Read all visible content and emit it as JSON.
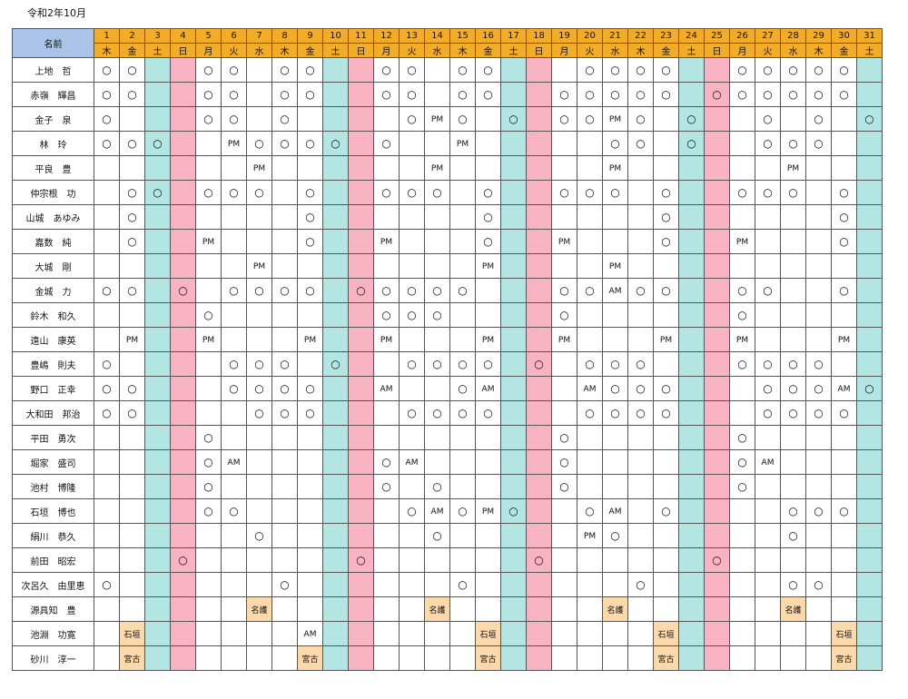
{
  "title": "令和2年10月",
  "header": {
    "name_label": "名前"
  },
  "days": [
    "1",
    "2",
    "3",
    "4",
    "5",
    "6",
    "7",
    "8",
    "9",
    "10",
    "11",
    "12",
    "13",
    "14",
    "15",
    "16",
    "17",
    "18",
    "19",
    "20",
    "21",
    "22",
    "23",
    "24",
    "25",
    "26",
    "27",
    "28",
    "29",
    "30",
    "31"
  ],
  "weekdays": [
    "木",
    "金",
    "土",
    "日",
    "月",
    "火",
    "水",
    "木",
    "金",
    "土",
    "日",
    "月",
    "火",
    "水",
    "木",
    "金",
    "土",
    "日",
    "月",
    "火",
    "水",
    "木",
    "金",
    "土",
    "日",
    "月",
    "火",
    "水",
    "木",
    "金",
    "土"
  ],
  "colors": {
    "name_header": "#a9c4e6",
    "day_header": "#f2ac28",
    "saturday": "#b3e6e3",
    "sunday": "#f7b3c2",
    "place_cell": "#fbd9ab"
  },
  "rows": [
    {
      "name": "上地　哲",
      "cells": [
        "○",
        "○",
        "",
        "",
        "○",
        "○",
        "",
        "○",
        "○",
        "",
        "",
        "○",
        "○",
        "",
        "○",
        "○",
        "",
        "",
        "",
        "○",
        "○",
        "○",
        "○",
        "",
        "",
        "○",
        "○",
        "○",
        "○",
        "○",
        ""
      ]
    },
    {
      "name": "赤嶺　輝昌",
      "cells": [
        "○",
        "○",
        "",
        "",
        "○",
        "○",
        "",
        "○",
        "○",
        "",
        "",
        "○",
        "○",
        "",
        "○",
        "○",
        "",
        "",
        "○",
        "○",
        "○",
        "○",
        "○",
        "",
        "○",
        "○",
        "○",
        "○",
        "○",
        "○",
        ""
      ]
    },
    {
      "name": "金子　泉",
      "cells": [
        "○",
        "",
        "",
        "",
        "○",
        "○",
        "",
        "○",
        "",
        "",
        "",
        "",
        "○",
        "PM",
        "○",
        "",
        "○",
        "",
        "○",
        "○",
        "PM",
        "○",
        "",
        "○",
        "",
        "",
        "○",
        "",
        "○",
        "",
        "○"
      ]
    },
    {
      "name": "林　玲",
      "cells": [
        "○",
        "○",
        "○",
        "",
        "",
        "PM",
        "○",
        "○",
        "○",
        "○",
        "",
        "○",
        "",
        "",
        "PM",
        "",
        "",
        "",
        "",
        "",
        "○",
        "○",
        "",
        "○",
        "",
        "",
        "○",
        "○",
        "○",
        "",
        ""
      ]
    },
    {
      "name": "平良　豊",
      "cells": [
        "",
        "",
        "",
        "",
        "",
        "",
        "PM",
        "",
        "",
        "",
        "",
        "",
        "",
        "PM",
        "",
        "",
        "",
        "",
        "",
        "",
        "PM",
        "",
        "",
        "",
        "",
        "",
        "",
        "PM",
        "",
        "",
        ""
      ]
    },
    {
      "name": "仲宗根　功",
      "cells": [
        "",
        "○",
        "○",
        "",
        "○",
        "○",
        "○",
        "",
        "○",
        "",
        "",
        "○",
        "○",
        "○",
        "",
        "○",
        "",
        "",
        "○",
        "○",
        "○",
        "",
        "○",
        "",
        "",
        "○",
        "○",
        "○",
        "",
        "○",
        ""
      ]
    },
    {
      "name": "山城　あゆみ",
      "cells": [
        "",
        "○",
        "",
        "",
        "",
        "",
        "",
        "",
        "○",
        "",
        "",
        "",
        "",
        "",
        "",
        "○",
        "",
        "",
        "",
        "",
        "",
        "",
        "○",
        "",
        "",
        "",
        "",
        "",
        "",
        "○",
        ""
      ]
    },
    {
      "name": "嘉数　純",
      "cells": [
        "",
        "○",
        "",
        "",
        "PM",
        "",
        "",
        "",
        "○",
        "",
        "",
        "PM",
        "",
        "",
        "",
        "○",
        "",
        "",
        "PM",
        "",
        "",
        "",
        "○",
        "",
        "",
        "PM",
        "",
        "",
        "",
        "○",
        ""
      ]
    },
    {
      "name": "大城　剛",
      "cells": [
        "",
        "",
        "",
        "",
        "",
        "",
        "PM",
        "",
        "",
        "",
        "",
        "",
        "",
        "",
        "",
        "PM",
        "",
        "",
        "",
        "",
        "PM",
        "",
        "",
        "",
        "",
        "",
        "",
        "",
        "",
        "",
        ""
      ]
    },
    {
      "name": "金城　力",
      "cells": [
        "○",
        "○",
        "",
        "○",
        "",
        "○",
        "○",
        "○",
        "○",
        "",
        "○",
        "○",
        "○",
        "○",
        "○",
        "",
        "",
        "",
        "○",
        "○",
        "AM",
        "○",
        "○",
        "",
        "",
        "○",
        "○",
        "",
        "",
        "○",
        ""
      ]
    },
    {
      "name": "鈴木　和久",
      "cells": [
        "",
        "",
        "",
        "",
        "○",
        "",
        "",
        "",
        "",
        "",
        "",
        "○",
        "○",
        "○",
        "",
        "",
        "",
        "",
        "○",
        "",
        "",
        "",
        "",
        "",
        "",
        "○",
        "",
        "",
        "",
        "",
        ""
      ]
    },
    {
      "name": "遠山　康英",
      "cells": [
        "",
        "PM",
        "",
        "",
        "PM",
        "",
        "",
        "",
        "PM",
        "",
        "",
        "PM",
        "",
        "",
        "",
        "PM",
        "",
        "",
        "PM",
        "",
        "",
        "",
        "PM",
        "",
        "",
        "PM",
        "",
        "",
        "",
        "PM",
        ""
      ]
    },
    {
      "name": "豊嶋　則夫",
      "cells": [
        "○",
        "",
        "",
        "",
        "",
        "○",
        "○",
        "○",
        "",
        "○",
        "",
        "",
        "○",
        "○",
        "○",
        "○",
        "",
        "○",
        "",
        "○",
        "○",
        "○",
        "",
        "",
        "",
        "○",
        "○",
        "○",
        "○",
        "",
        ""
      ]
    },
    {
      "name": "野口　正幸",
      "cells": [
        "○",
        "○",
        "",
        "",
        "",
        "○",
        "○",
        "○",
        "○",
        "",
        "",
        "AM",
        "",
        "",
        "○",
        "AM",
        "",
        "",
        "",
        "AM",
        "○",
        "○",
        "○",
        "",
        "",
        "",
        "○",
        "○",
        "○",
        "AM",
        "○"
      ]
    },
    {
      "name": "大和田　邦治",
      "cells": [
        "○",
        "○",
        "",
        "",
        "",
        "",
        "○",
        "○",
        "○",
        "",
        "",
        "",
        "○",
        "○",
        "○",
        "○",
        "",
        "",
        "",
        "○",
        "○",
        "○",
        "○",
        "",
        "",
        "",
        "○",
        "○",
        "○",
        "○",
        ""
      ]
    },
    {
      "name": "平田　勇次",
      "cells": [
        "",
        "",
        "",
        "",
        "○",
        "",
        "",
        "",
        "",
        "",
        "",
        "",
        "",
        "",
        "",
        "",
        "",
        "",
        "○",
        "",
        "",
        "",
        "",
        "",
        "",
        "○",
        "",
        "",
        "",
        "",
        ""
      ]
    },
    {
      "name": "堀家　盛司",
      "cells": [
        "",
        "",
        "",
        "",
        "○",
        "AM",
        "",
        "",
        "",
        "",
        "",
        "○",
        "AM",
        "",
        "",
        "",
        "",
        "",
        "○",
        "",
        "",
        "",
        "",
        "",
        "",
        "○",
        "AM",
        "",
        "",
        "",
        ""
      ]
    },
    {
      "name": "池村　博隆",
      "cells": [
        "",
        "",
        "",
        "",
        "○",
        "",
        "",
        "",
        "",
        "",
        "",
        "○",
        "",
        "○",
        "",
        "",
        "",
        "",
        "○",
        "",
        "",
        "",
        "",
        "",
        "",
        "○",
        "",
        "",
        "",
        "",
        ""
      ]
    },
    {
      "name": "石垣　博也",
      "cells": [
        "",
        "",
        "",
        "",
        "○",
        "○",
        "",
        "",
        "",
        "",
        "",
        "",
        "○",
        "AM",
        "○",
        "PM",
        "○",
        "",
        "",
        "○",
        "AM",
        "",
        "○",
        "",
        "",
        "",
        "",
        "○",
        "○",
        "○",
        ""
      ]
    },
    {
      "name": "絹川　恭久",
      "cells": [
        "",
        "",
        "",
        "",
        "",
        "",
        "○",
        "",
        "",
        "",
        "",
        "",
        "",
        "○",
        "",
        "",
        "",
        "",
        "",
        "PM",
        "○",
        "",
        "",
        "",
        "",
        "",
        "",
        "○",
        "",
        "",
        ""
      ]
    },
    {
      "name": "前田　昭宏",
      "cells": [
        "",
        "",
        "",
        "○",
        "",
        "",
        "",
        "",
        "",
        "",
        "○",
        "",
        "",
        "",
        "",
        "",
        "",
        "○",
        "",
        "",
        "",
        "",
        "",
        "",
        "○",
        "",
        "",
        "",
        "",
        "",
        ""
      ]
    },
    {
      "name": "次呂久　由里恵",
      "cells": [
        "○",
        "",
        "",
        "",
        "",
        "",
        "",
        "○",
        "",
        "",
        "",
        "",
        "",
        "",
        "○",
        "",
        "",
        "",
        "",
        "",
        "",
        "○",
        "",
        "",
        "",
        "",
        "",
        "○",
        "○",
        "",
        ""
      ]
    },
    {
      "name": "源具知　豊",
      "cells": [
        "",
        "",
        "",
        "",
        "",
        "",
        "名護",
        "",
        "",
        "",
        "",
        "",
        "",
        "名護",
        "",
        "",
        "",
        "",
        "",
        "",
        "名護",
        "",
        "",
        "",
        "",
        "",
        "",
        "名護",
        "",
        "",
        ""
      ]
    },
    {
      "name": "池淵　功寛",
      "cells": [
        "",
        "石垣",
        "",
        "",
        "",
        "",
        "",
        "",
        "AM",
        "",
        "",
        "",
        "",
        "",
        "",
        "石垣",
        "",
        "",
        "",
        "",
        "",
        "",
        "石垣",
        "",
        "",
        "",
        "",
        "",
        "",
        "石垣",
        ""
      ]
    },
    {
      "name": "砂川　淳一",
      "cells": [
        "",
        "宮古",
        "",
        "",
        "",
        "",
        "",
        "",
        "宮古",
        "",
        "",
        "",
        "",
        "",
        "",
        "宮古",
        "",
        "",
        "",
        "",
        "",
        "",
        "宮古",
        "",
        "",
        "",
        "",
        "",
        "",
        "宮古",
        ""
      ]
    }
  ]
}
